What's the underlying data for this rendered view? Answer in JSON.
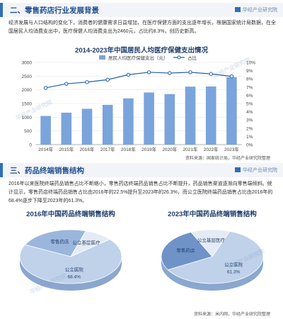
{
  "section1": {
    "title": "二、零售药店行业发展背景",
    "brand": "华经产业研究院"
  },
  "section1_text": "经济发展与人口结构的变化下，消费者的健康需求日益增加，在医疗保健方面的支出逐年增长，根据国家统计局数据，在全国居民人均消费支出中，医疗保健人均消费支出为2460元，占比约8.3%，创历史新高。",
  "section2": {
    "title": "三、药品终端销售结构",
    "brand": "华经产业研究院"
  },
  "section2_text": "2016年以来医院终端药品销售占比不断缩小，零售药店终端药品销售占比不断提升，药品销售渠道逐渐向零售端倾斜。统计显示，零售药店终端药品销售占比由2016年的22.5%提升至2023年的26.3%，而公立医院终端药品销售占比由2016年的68.4%逐步下降至2023年的61.3%。",
  "source1": "资料来源：国家统计局，华经产业研究院整理",
  "source2": "资料来源：米内网，华经产业研究院整理",
  "watermark": "华经产业研究院",
  "chart_data": [
    {
      "type": "bar",
      "title": "2014-2023年中国居民人均医疗保健支出情况",
      "categories": [
        "2014年",
        "2015年",
        "2016年",
        "2017年",
        "2018年",
        "2019年",
        "2020年",
        "2021年",
        "2022年",
        "2023年"
      ],
      "series": [
        {
          "name": "居民人均医疗保健支出（元）",
          "type": "bar",
          "axis": "left",
          "values": [
            1045,
            1165,
            1307,
            1451,
            1685,
            1902,
            1843,
            2115,
            2120,
            2460
          ]
        },
        {
          "name": "占比",
          "type": "line",
          "axis": "right",
          "values": [
            6.9,
            7.4,
            7.6,
            7.9,
            8.5,
            8.8,
            8.7,
            8.8,
            8.6,
            8.3
          ]
        }
      ],
      "ylim": [
        0,
        3000
      ],
      "yticks": [
        "0",
        "500",
        "1000",
        "1500",
        "2000",
        "2500",
        "3000"
      ],
      "y2lim": [
        0,
        10
      ],
      "y2ticks": [
        "0%",
        "1%",
        "2%",
        "3%",
        "4%",
        "5%",
        "6%",
        "7%",
        "8%",
        "9%",
        "10%"
      ],
      "legend": "top"
    },
    {
      "type": "pie",
      "title": "2016年中国药品终端销售结构",
      "slices": [
        {
          "label": "公立医院",
          "value": 68.4,
          "value_label": "68.4%",
          "color": "#bfd2ea"
        },
        {
          "label": "零售药店",
          "value": 22.5,
          "color": "#9ab6dc"
        },
        {
          "label": "公立基层医疗",
          "value": 9.1,
          "color": "#e4ebf5"
        }
      ]
    },
    {
      "type": "pie",
      "title": "2023年中国药品终端销售结构",
      "slices": [
        {
          "label": "公立医院",
          "value": 61.3,
          "value_label": "61.3%",
          "color": "#bfd2ea"
        },
        {
          "label": "零售药店",
          "value": 26.3,
          "color": "#6f93c8"
        },
        {
          "label": "公立基层医疗",
          "value": 12.4,
          "color": "#e4ebf5"
        }
      ]
    }
  ]
}
